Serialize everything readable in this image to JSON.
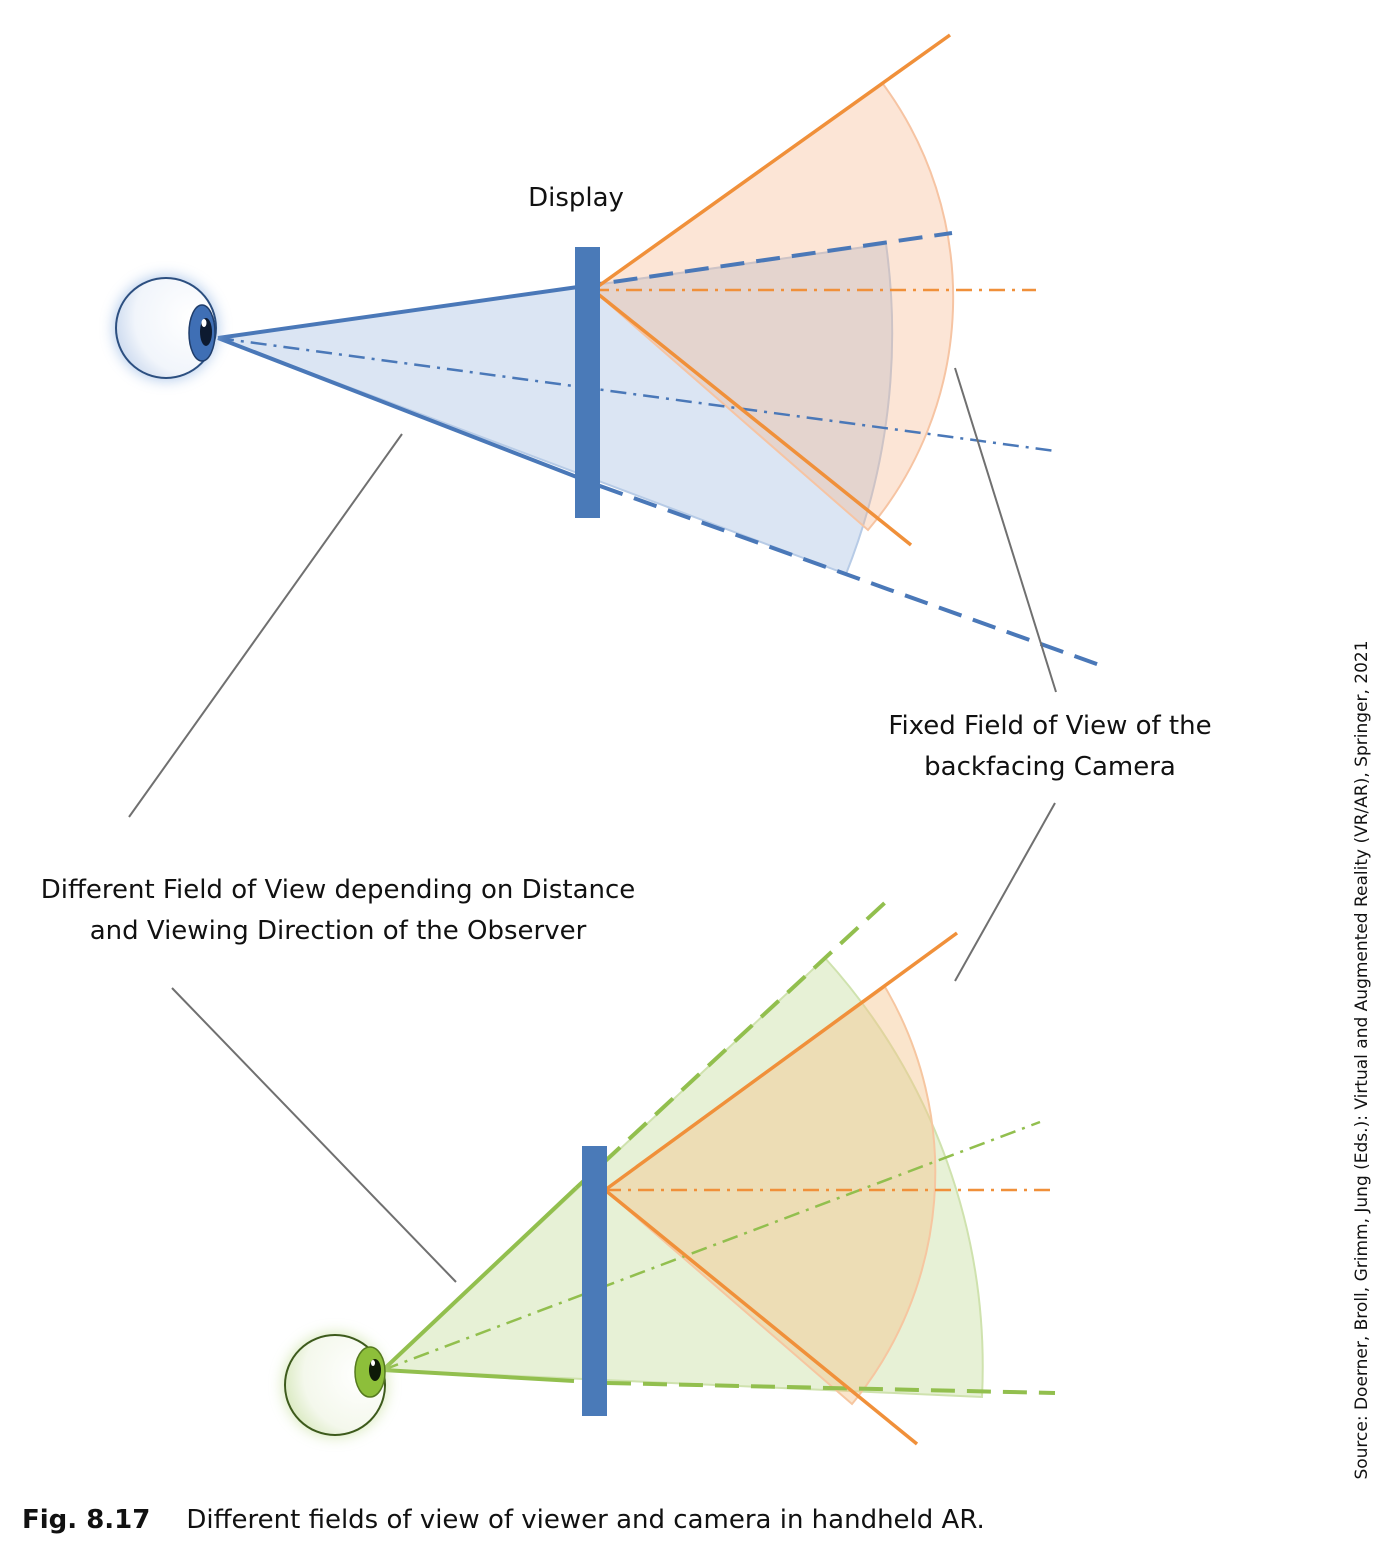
{
  "labels": {
    "display": "Display",
    "fixed_fov_line1": "Fixed Field of View of the",
    "fixed_fov_line2": "backfacing Camera",
    "different_fov_line1": "Different Field of View depending on Distance",
    "different_fov_line2": "and Viewing Direction of the Observer"
  },
  "source": "Source: Doerner, Broll, Grimm, Jung (Eds.): Virtual and Augmented Reality (VR/AR), Springer, 2021",
  "caption": {
    "figure_number": "Fig. 8.17",
    "text": "Different fields of view of viewer and camera in handheld AR."
  },
  "colors": {
    "viewer_top": "#4a78b8",
    "viewer_bottom": "#92bf4e",
    "camera": "#f0903a",
    "display": "#4a7ab8",
    "leader": "#707070"
  }
}
